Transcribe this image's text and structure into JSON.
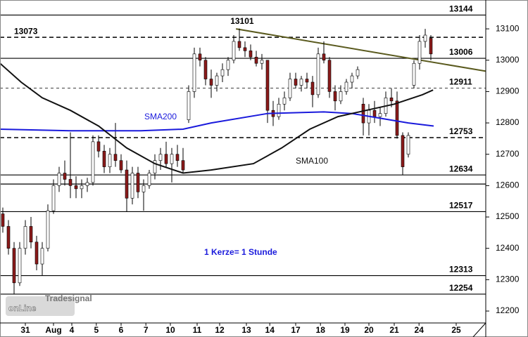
{
  "chart_data": {
    "type": "candlestick",
    "candles": [
      [
        12510,
        12530,
        12450,
        12470
      ],
      [
        12470,
        12490,
        12380,
        12400
      ],
      [
        12400,
        12420,
        12254,
        12290
      ],
      [
        12290,
        12420,
        12280,
        12400
      ],
      [
        12400,
        12490,
        12380,
        12470
      ],
      [
        12470,
        12500,
        12400,
        12420
      ],
      [
        12420,
        12440,
        12330,
        12350
      ],
      [
        12350,
        12420,
        12313,
        12400
      ],
      [
        12400,
        12540,
        12390,
        12520
      ],
      [
        12520,
        12620,
        12510,
        12600
      ],
      [
        12600,
        12660,
        12580,
        12640
      ],
      [
        12640,
        12680,
        12600,
        12620
      ],
      [
        12620,
        12770,
        12560,
        12600
      ],
      [
        12600,
        12630,
        12560,
        12590
      ],
      [
        12590,
        12620,
        12560,
        12600
      ],
      [
        12600,
        12625,
        12580,
        12610
      ],
      [
        12610,
        12760,
        12600,
        12740
      ],
      [
        12740,
        12760,
        12690,
        12710
      ],
      [
        12710,
        12730,
        12640,
        12660
      ],
      [
        12660,
        12720,
        12640,
        12700
      ],
      [
        12700,
        12800,
        12660,
        12680
      ],
      [
        12680,
        12700,
        12640,
        12650
      ],
      [
        12650,
        12680,
        12517,
        12560
      ],
      [
        12560,
        12660,
        12540,
        12640
      ],
      [
        12640,
        12660,
        12560,
        12580
      ],
      [
        12580,
        12620,
        12520,
        12600
      ],
      [
        12600,
        12650,
        12590,
        12640
      ],
      [
        12640,
        12700,
        12620,
        12680
      ],
      [
        12680,
        12720,
        12650,
        12700
      ],
      [
        12700,
        12740,
        12660,
        12670
      ],
      [
        12670,
        12720,
        12610,
        12700
      ],
      [
        12700,
        12730,
        12660,
        12680
      ],
      [
        12680,
        12720,
        12640,
        12650
      ],
      [
        12810,
        12920,
        12800,
        12900
      ],
      [
        12900,
        13040,
        12880,
        13020
      ],
      [
        13020,
        13040,
        12980,
        13000
      ],
      [
        13000,
        13010,
        12920,
        12940
      ],
      [
        12940,
        12970,
        12880,
        12920
      ],
      [
        12920,
        12960,
        12900,
        12950
      ],
      [
        12950,
        12990,
        12930,
        12970
      ],
      [
        12970,
        13010,
        12950,
        13000
      ],
      [
        13000,
        13080,
        12990,
        13060
      ],
      [
        13060,
        13101,
        13030,
        13040
      ],
      [
        13040,
        13060,
        13010,
        13030
      ],
      [
        13030,
        13050,
        13000,
        13010
      ],
      [
        13010,
        13030,
        12980,
        12990
      ],
      [
        12990,
        13020,
        12970,
        13000
      ],
      [
        13000,
        13000,
        12800,
        12840
      ],
      [
        12840,
        12870,
        12790,
        12820
      ],
      [
        12820,
        12880,
        12810,
        12860
      ],
      [
        12860,
        12900,
        12840,
        12880
      ],
      [
        12880,
        12960,
        12870,
        12940
      ],
      [
        12940,
        12960,
        12910,
        12920
      ],
      [
        12920,
        12950,
        12900,
        12940
      ],
      [
        12940,
        12960,
        12910,
        12930
      ],
      [
        12930,
        12950,
        12850,
        12890
      ],
      [
        12890,
        13040,
        12880,
        13020
      ],
      [
        13020,
        13060,
        12990,
        13000
      ],
      [
        13000,
        13010,
        12880,
        12900
      ],
      [
        12900,
        12920,
        12840,
        12870
      ],
      [
        12870,
        12920,
        12860,
        12900
      ],
      [
        12900,
        12940,
        12890,
        12930
      ],
      [
        12930,
        12960,
        12910,
        12950
      ],
      [
        12950,
        12980,
        12940,
        12970
      ],
      [
        12860,
        12880,
        12760,
        12800
      ],
      [
        12800,
        12860,
        12760,
        12840
      ],
      [
        12840,
        12870,
        12800,
        12820
      ],
      [
        12820,
        12850,
        12790,
        12830
      ],
      [
        12830,
        12900,
        12820,
        12880
      ],
      [
        12880,
        12910,
        12850,
        12870
      ],
      [
        12870,
        12900,
        12750,
        12760
      ],
      [
        12760,
        12770,
        12634,
        12660
      ],
      [
        12700,
        12770,
        12690,
        12760
      ],
      [
        12920,
        13000,
        12910,
        12990
      ],
      [
        12990,
        13080,
        12970,
        13060
      ],
      [
        13060,
        13100,
        13040,
        13080
      ],
      [
        13070,
        13080,
        13000,
        13020
      ]
    ],
    "up_color": "#ffffff",
    "down_color": "#8b1a1a",
    "series": [
      {
        "name": "SMA200",
        "color": "#1a1adc",
        "x": [
          -0.5,
          12,
          24.5,
          32,
          37,
          47,
          57,
          62,
          67,
          72,
          76.5
        ],
        "values": [
          12780,
          12775,
          12775,
          12780,
          12800,
          12830,
          12835,
          12830,
          12815,
          12800,
          12790
        ]
      },
      {
        "name": "SMA100",
        "color": "#111111",
        "x": [
          -0.5,
          3.25,
          7,
          12,
          17,
          22,
          27,
          32,
          37,
          44.5,
          49.5,
          54.5,
          59.5,
          64.5,
          69.5,
          74.5,
          76.4
        ],
        "values": [
          12990,
          12930,
          12880,
          12840,
          12790,
          12720,
          12670,
          12640,
          12650,
          12670,
          12720,
          12780,
          12820,
          12840,
          12860,
          12890,
          12905
        ]
      }
    ],
    "series_labels": [
      {
        "text": "SMA200",
        "color": "#1a1adc"
      },
      {
        "text": "SMA100",
        "color": "#111111"
      }
    ],
    "trendline": {
      "color": "#5a5a1e",
      "x": [
        41.4,
        85.75
      ],
      "values": [
        13100,
        12965
      ]
    },
    "levels": [
      {
        "value": 13144,
        "style": "solid",
        "labeled": true
      },
      {
        "value": 13073,
        "style": "dashed",
        "labeled": true
      },
      {
        "value": 13006,
        "style": "solid",
        "labeled": true
      },
      {
        "value": 12911,
        "style": "dashed-thin",
        "labeled": true
      },
      {
        "value": 12753,
        "style": "dashed",
        "labeled": true
      },
      {
        "value": 12634,
        "style": "solid",
        "labeled": true
      },
      {
        "value": 12605,
        "style": "solid",
        "labeled": false
      },
      {
        "value": 12517,
        "style": "solid",
        "labeled": true
      },
      {
        "value": 12313,
        "style": "solid",
        "labeled": true
      },
      {
        "value": 12254,
        "style": "solid",
        "labeled": true
      }
    ],
    "high_label": {
      "value": 13101,
      "x": 41.4
    },
    "annotation": "1 Kerze= 1 Stunde",
    "watermark": {
      "small": "Tradesignal",
      "big": "onLine"
    },
    "xlim": [
      -0.5,
      85.75
    ],
    "xticks": [
      {
        "value": 4,
        "label": "31"
      },
      {
        "value": 9,
        "label": "Aug"
      },
      {
        "value": 12.25,
        "label": "4"
      },
      {
        "value": 16.6,
        "label": "5"
      },
      {
        "value": 21,
        "label": "6"
      },
      {
        "value": 25.4,
        "label": "7"
      },
      {
        "value": 29.75,
        "label": "10"
      },
      {
        "value": 34.5,
        "label": "11"
      },
      {
        "value": 38.5,
        "label": "12"
      },
      {
        "value": 43.25,
        "label": "13"
      },
      {
        "value": 47.4,
        "label": "14"
      },
      {
        "value": 52,
        "label": "17"
      },
      {
        "value": 56.4,
        "label": "18"
      },
      {
        "value": 60.75,
        "label": "19"
      },
      {
        "value": 65,
        "label": "20"
      },
      {
        "value": 69.5,
        "label": "21"
      },
      {
        "value": 73.9,
        "label": "24"
      },
      {
        "value": 80.5,
        "label": "25"
      }
    ],
    "ylim": [
      12162,
      13192
    ],
    "yticks": [
      12200,
      12300,
      12400,
      12500,
      12600,
      12700,
      12800,
      12900,
      13000,
      13100
    ]
  }
}
